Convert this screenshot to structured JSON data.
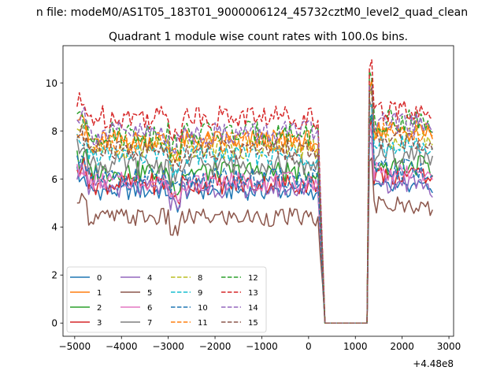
{
  "figure": {
    "suptitle": "n file: modeM0/AS1T05_183T01_9000006124_45732cztM0_level2_quad_clean",
    "offset_text": "+4.48e8"
  },
  "chart_data": {
    "type": "line",
    "title": "Quadrant 1 module wise count rates with 100.0s bins.",
    "xlabel": "",
    "ylabel": "",
    "x_offset": 448000000,
    "xlim": [
      -5250,
      3100
    ],
    "ylim": [
      -0.55,
      11.55
    ],
    "x_ticks": [
      -5000,
      -4000,
      -3000,
      -2000,
      -1000,
      0,
      1000,
      2000,
      3000
    ],
    "x_tick_labels": [
      "−5000",
      "−4000",
      "−3000",
      "−2000",
      "−1000",
      "0",
      "1000",
      "2000",
      "3000"
    ],
    "y_ticks": [
      0,
      2,
      4,
      6,
      8,
      10
    ],
    "y_tick_labels": [
      "0",
      "2",
      "4",
      "6",
      "8",
      "10"
    ],
    "grid": false,
    "legend": {
      "placement": "lower-left",
      "columns": 4
    },
    "x_start": -4950,
    "x_step": 50,
    "gap_range": [
      350,
      1250
    ],
    "x_end": 2650,
    "series": [
      {
        "name": "0",
        "color": "#1f77b4",
        "dash": "solid",
        "base_first": 5.5,
        "base_second": 5.6,
        "amp": 0.3
      },
      {
        "name": "1",
        "color": "#ff7f0e",
        "dash": "solid",
        "base_first": 7.6,
        "base_second": 8.0,
        "amp": 0.35
      },
      {
        "name": "2",
        "color": "#2ca02c",
        "dash": "solid",
        "base_first": 6.3,
        "base_second": 6.6,
        "amp": 0.35
      },
      {
        "name": "3",
        "color": "#d62728",
        "dash": "solid",
        "base_first": 5.8,
        "base_second": 6.2,
        "amp": 0.35
      },
      {
        "name": "4",
        "color": "#9467bd",
        "dash": "solid",
        "base_first": 5.6,
        "base_second": 5.8,
        "amp": 0.3
      },
      {
        "name": "5",
        "color": "#8c564b",
        "dash": "solid",
        "base_first": 4.4,
        "base_second": 4.9,
        "amp": 0.3
      },
      {
        "name": "6",
        "color": "#e377c2",
        "dash": "solid",
        "base_first": 5.9,
        "base_second": 6.3,
        "amp": 0.3
      },
      {
        "name": "7",
        "color": "#7f7f7f",
        "dash": "solid",
        "base_first": 6.6,
        "base_second": 7.0,
        "amp": 0.35
      },
      {
        "name": "8",
        "color": "#bcbd22",
        "dash": "dashed",
        "base_first": 7.3,
        "base_second": 7.7,
        "amp": 0.35
      },
      {
        "name": "9",
        "color": "#17becf",
        "dash": "dashed",
        "base_first": 7.0,
        "base_second": 7.4,
        "amp": 0.35
      },
      {
        "name": "10",
        "color": "#1f77b4",
        "dash": "dashed",
        "base_first": 6.0,
        "base_second": 6.4,
        "amp": 0.35
      },
      {
        "name": "11",
        "color": "#ff7f0e",
        "dash": "dashed",
        "base_first": 7.5,
        "base_second": 8.0,
        "amp": 0.35
      },
      {
        "name": "12",
        "color": "#2ca02c",
        "dash": "dashed",
        "base_first": 7.9,
        "base_second": 8.4,
        "amp": 0.4
      },
      {
        "name": "13",
        "color": "#d62728",
        "dash": "dashed",
        "base_first": 8.6,
        "base_second": 8.9,
        "amp": 0.4
      },
      {
        "name": "14",
        "color": "#9467bd",
        "dash": "dashed",
        "base_first": 7.9,
        "base_second": 8.3,
        "amp": 0.4
      },
      {
        "name": "15",
        "color": "#8c564b",
        "dash": "dashed",
        "base_first": 7.2,
        "base_second": 7.6,
        "amp": 0.35
      }
    ]
  }
}
